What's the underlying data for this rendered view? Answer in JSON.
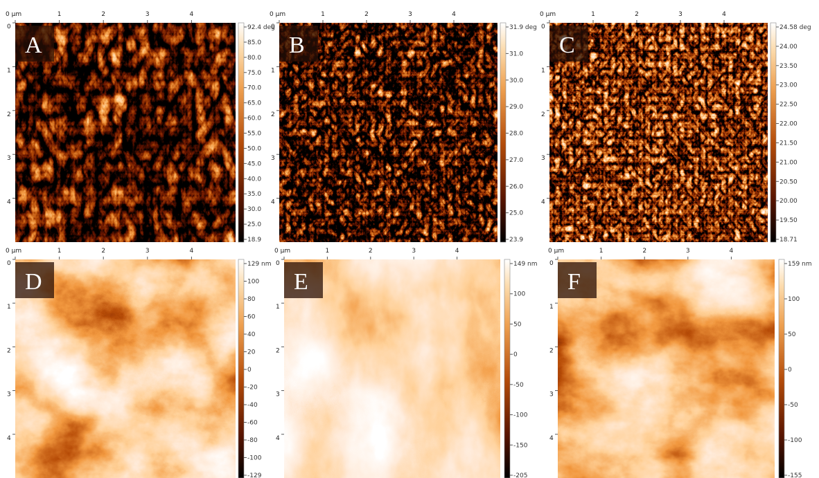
{
  "panels": [
    {
      "label": "A",
      "x_ticks": [
        "0 µm",
        "1",
        "2",
        "3",
        "4"
      ],
      "y_ticks": [
        "0",
        "1",
        "2",
        "3",
        "4"
      ],
      "colorbar": [
        "92.4 deg",
        "85.0",
        "80.0",
        "75.0",
        "70.0",
        "65.0",
        "60.0",
        "55.0",
        "50.0",
        "45.0",
        "40.0",
        "35.0",
        "30.0",
        "25.0",
        "18.9"
      ]
    },
    {
      "label": "B",
      "x_ticks": [
        "0 µm",
        "1",
        "2",
        "3",
        "4"
      ],
      "y_ticks": [
        "0",
        "1",
        "2",
        "3",
        "4"
      ],
      "colorbar": [
        "31.9 deg",
        "31.0",
        "30.0",
        "29.0",
        "28.0",
        "27.0",
        "26.0",
        "25.0",
        "23.9"
      ]
    },
    {
      "label": "C",
      "x_ticks": [
        "0 µm",
        "1",
        "2",
        "3",
        "4"
      ],
      "y_ticks": [
        "0",
        "1",
        "2",
        "3",
        "4"
      ],
      "colorbar": [
        "24.58 deg",
        "24.00",
        "23.50",
        "23.00",
        "22.50",
        "22.00",
        "21.50",
        "21.00",
        "20.50",
        "20.00",
        "19.50",
        "18.71"
      ]
    },
    {
      "label": "D",
      "x_ticks": [
        "0 µm",
        "1",
        "2",
        "3",
        "4"
      ],
      "y_ticks": [
        "0",
        "1",
        "2",
        "3",
        "4"
      ],
      "colorbar": [
        "129 nm",
        "100",
        "80",
        "60",
        "40",
        "20",
        "0",
        "-20",
        "-40",
        "-60",
        "-80",
        "-100",
        "-129"
      ]
    },
    {
      "label": "E",
      "x_ticks": [
        "0 µm",
        "1",
        "2",
        "3",
        "4"
      ],
      "y_ticks": [
        "0",
        "1",
        "2",
        "3",
        "4"
      ],
      "colorbar": [
        "149 nm",
        "100",
        "50",
        "0",
        "-50",
        "-100",
        "-150",
        "-205"
      ]
    },
    {
      "label": "F",
      "x_ticks": [
        "0 µm",
        "1",
        "2",
        "3",
        "4"
      ],
      "y_ticks": [
        "0",
        "1",
        "2",
        "3",
        "4"
      ],
      "colorbar": [
        "159 nm",
        "100",
        "50",
        "0",
        "-50",
        "-100",
        "-155"
      ]
    }
  ]
}
